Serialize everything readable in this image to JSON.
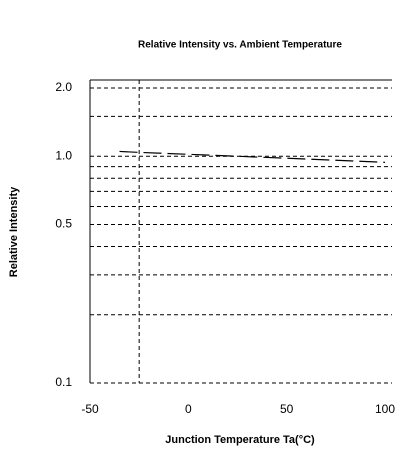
{
  "chart_data": {
    "type": "line",
    "title": "Relative Intensity vs. Ambient Temperature",
    "x_label": "Junction Temperature Ta(°C)",
    "y_label": "Relative Intensity",
    "x": [
      -35,
      -25,
      0,
      25,
      50,
      75,
      100
    ],
    "series": [
      {
        "name": "Relative Intensity",
        "color": "#000000",
        "values": [
          1.05,
          1.04,
          1.02,
          1.0,
          0.98,
          0.96,
          0.94
        ]
      }
    ],
    "xlim": [
      -50,
      100
    ],
    "xticks": [
      -50,
      0,
      50,
      100
    ],
    "ylim": [
      0.1,
      2.0
    ],
    "yticks": [
      0.1,
      0.5,
      {
        "value": 1,
        "label": "1.0"
      },
      {
        "value": 2,
        "label": "2.0"
      }
    ],
    "y_minor_ticks": [
      0.2,
      0.3,
      0.4,
      0.6,
      0.7,
      0.8,
      0.9,
      1.5
    ],
    "x_reference": -25,
    "y_scale": "log",
    "grid": true
  }
}
